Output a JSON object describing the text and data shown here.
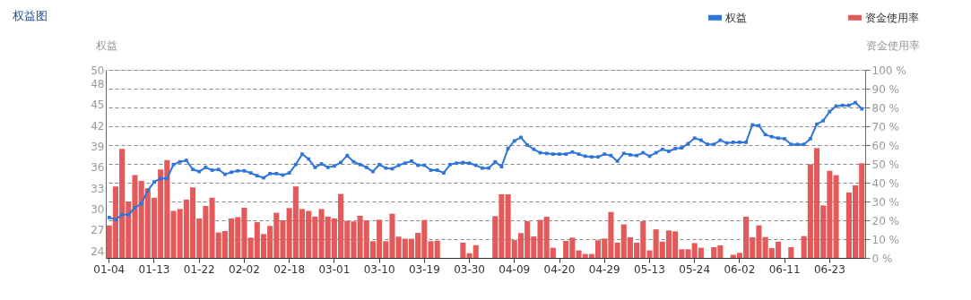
{
  "chart_data": {
    "type": "bar",
    "title": "权益图",
    "ylabel": "权益",
    "y2label": "资金使用率",
    "categories": [
      "01-04",
      null,
      null,
      null,
      null,
      null,
      null,
      "01-13",
      null,
      null,
      null,
      null,
      null,
      null,
      "01-22",
      null,
      null,
      null,
      null,
      null,
      null,
      "02-02",
      null,
      null,
      null,
      null,
      null,
      null,
      "02-18",
      null,
      null,
      null,
      null,
      null,
      null,
      "03-01",
      null,
      null,
      null,
      null,
      null,
      null,
      "03-10",
      null,
      null,
      null,
      null,
      null,
      null,
      "03-19",
      null,
      null,
      null,
      null,
      null,
      null,
      "03-30",
      null,
      null,
      null,
      null,
      null,
      null,
      "04-09",
      null,
      null,
      null,
      null,
      null,
      null,
      "04-20",
      null,
      null,
      null,
      null,
      null,
      null,
      "04-29",
      null,
      null,
      null,
      null,
      null,
      null,
      "05-13",
      null,
      null,
      null,
      null,
      null,
      null,
      "05-24",
      null,
      null,
      null,
      null,
      null,
      null,
      "06-02",
      null,
      null,
      null,
      null,
      null,
      null,
      "06-11",
      null,
      null,
      null,
      null,
      null,
      null,
      "06-23",
      null,
      null,
      null,
      null,
      null
    ],
    "series": [
      {
        "name": "资金使用率",
        "axis": "y2",
        "color": "#e35a5a",
        "values": [
          17.3,
          38,
          58,
          30,
          44,
          41,
          37,
          32,
          47,
          52,
          25,
          26,
          31,
          37.5,
          21,
          27.6,
          32,
          13.5,
          14.3,
          21,
          21.7,
          26.7,
          10.8,
          19,
          12.7,
          17,
          24,
          20,
          26.5,
          38,
          26,
          25,
          22,
          26,
          22,
          21,
          34,
          19.7,
          19.4,
          22.4,
          20,
          8.9,
          20.3,
          8.9,
          23.5,
          11.3,
          10.2,
          10.2,
          13.3,
          20.2,
          8.9,
          9.2,
          null,
          null,
          null,
          8.1,
          2.5,
          6.8,
          null,
          null,
          22.2,
          33.8,
          33.8,
          9.5,
          13.2,
          19.5,
          11.4,
          20.2,
          21.9,
          5.4,
          null,
          9,
          10.8,
          4,
          2.1,
          2.1,
          9.4,
          10.3,
          24.4,
          8.1,
          17.8,
          11,
          8.1,
          19.5,
          4,
          15.2,
          8.7,
          14.6,
          14.1,
          4.6,
          4.6,
          7.9,
          5.4,
          null,
          5.7,
          6.7,
          null,
          1.7,
          2.7,
          21.9,
          11,
          17.3,
          11.1,
          5.2,
          8.6,
          null,
          5.7,
          null,
          11.6,
          49.8,
          58.4,
          27.9,
          46.3,
          44,
          null,
          34.8,
          38.6,
          50.3
        ]
      },
      {
        "name": "权益",
        "type": "line",
        "axis": "y",
        "color": "#2f74db",
        "marker": "square",
        "line_style": "solid",
        "values": [
          28.8,
          28.5,
          29.2,
          29.2,
          30.2,
          30.8,
          32.7,
          33.9,
          34.4,
          34.4,
          36.4,
          36.8,
          37.0,
          35.7,
          35.4,
          36.0,
          35.6,
          35.7,
          35.0,
          35.3,
          35.5,
          35.5,
          35.2,
          34.8,
          34.5,
          35.1,
          35.1,
          34.9,
          35.2,
          36.4,
          37.9,
          37.2,
          36.0,
          36.5,
          36.0,
          36.2,
          36.7,
          37.7,
          36.8,
          36.4,
          36.0,
          35.4,
          36.4,
          35.9,
          35.8,
          36.3,
          36.6,
          36.9,
          36.3,
          36.3,
          35.6,
          35.6,
          35.2,
          36.4,
          36.6,
          36.7,
          36.6,
          36.3,
          35.9,
          35.9,
          36.8,
          36.1,
          38.7,
          39.8,
          40.3,
          39.2,
          38.6,
          38.1,
          38.0,
          37.9,
          37.9,
          37.9,
          38.2,
          37.9,
          37.6,
          37.5,
          37.5,
          37.9,
          37.7,
          36.9,
          38.0,
          37.8,
          37.7,
          38.1,
          37.6,
          38.1,
          38.6,
          38.3,
          38.7,
          38.8,
          39.4,
          40.2,
          39.9,
          39.3,
          39.3,
          39.9,
          39.5,
          39.6,
          39.6,
          39.6,
          42.1,
          42.0,
          40.7,
          40.4,
          40.2,
          40.1,
          39.3,
          39.3,
          39.3,
          40.1,
          42.2,
          42.7,
          44.0,
          44.8,
          44.9,
          44.9,
          45.3,
          44.4
        ]
      }
    ],
    "ylim": [
      23,
      50
    ],
    "yticks": [
      24,
      27,
      30,
      33,
      36,
      39,
      42,
      45,
      48,
      50
    ],
    "y2lim": [
      0,
      100
    ],
    "y2ticks": [
      {
        "value": 0,
        "label": "0 %"
      },
      {
        "value": 10,
        "label": "10 %"
      },
      {
        "value": 20,
        "label": "20 %"
      },
      {
        "value": 30,
        "label": "30 %"
      },
      {
        "value": 40,
        "label": "40 %"
      },
      {
        "value": 50,
        "label": "50 %"
      },
      {
        "value": 60,
        "label": "60 %"
      },
      {
        "value": 70,
        "label": "70 %"
      },
      {
        "value": 80,
        "label": "80 %"
      },
      {
        "value": 90,
        "label": "90 %"
      },
      {
        "value": 100,
        "label": "100 %"
      }
    ],
    "grid": true,
    "legend": "top right"
  }
}
